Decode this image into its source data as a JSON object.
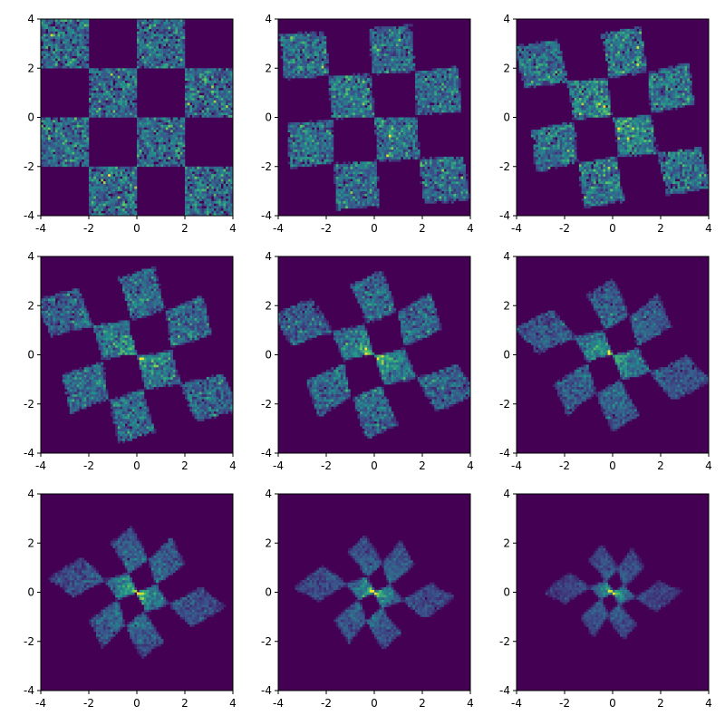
{
  "figure": {
    "background": "#ffffff",
    "colormap": "viridis",
    "colormap_stops": [
      "#440154",
      "#3b528b",
      "#21918c",
      "#5ec962",
      "#fde725"
    ]
  },
  "chart_data": [
    {
      "type": "heatmap",
      "panel": 1,
      "transform": {
        "rotation_deg": 0,
        "contraction": 0.0,
        "radial_gap": 0.0,
        "concentration": 0.0
      },
      "xlim": [
        -4,
        4
      ],
      "ylim": [
        -4,
        4
      ],
      "xticks": [
        "-4",
        "-2",
        "0",
        "2",
        "4"
      ],
      "yticks": [
        "-4",
        "-2",
        "0",
        "2",
        "4"
      ],
      "grid": false,
      "legend": "none",
      "distribution": "checkerboard of uniform squares, cell size 2, range [-4,4]"
    },
    {
      "type": "heatmap",
      "panel": 2,
      "transform": {
        "rotation_deg": 4,
        "contraction": 0.1,
        "radial_gap": 0.1,
        "concentration": 0.1
      },
      "xlim": [
        -4,
        4
      ],
      "ylim": [
        -4,
        4
      ],
      "xticks": [
        "-4",
        "-2",
        "0",
        "2",
        "4"
      ],
      "yticks": [
        "-4",
        "-2",
        "0",
        "2",
        "4"
      ],
      "grid": false,
      "legend": "none",
      "distribution": "squares shrink and separate"
    },
    {
      "type": "heatmap",
      "panel": 3,
      "transform": {
        "rotation_deg": 9,
        "contraction": 0.14,
        "radial_gap": 0.16,
        "concentration": 0.2
      },
      "xlim": [
        -4,
        4
      ],
      "ylim": [
        -4,
        4
      ],
      "xticks": [
        "-4",
        "-2",
        "0",
        "2",
        "4"
      ],
      "yticks": [
        "-4",
        "-2",
        "0",
        "2",
        "4"
      ],
      "grid": false,
      "legend": "none",
      "distribution": "squares rotate toward center"
    },
    {
      "type": "heatmap",
      "panel": 4,
      "transform": {
        "rotation_deg": 16,
        "contraction": 0.18,
        "radial_gap": 0.2,
        "concentration": 0.32
      },
      "xlim": [
        -4,
        4
      ],
      "ylim": [
        -4,
        4
      ],
      "xticks": [
        "-4",
        "-2",
        "0",
        "2",
        "4"
      ],
      "yticks": [
        "-4",
        "-2",
        "0",
        "2",
        "4"
      ],
      "grid": false,
      "legend": "none",
      "distribution": "pinwheel forming"
    },
    {
      "type": "heatmap",
      "panel": 5,
      "transform": {
        "rotation_deg": 23,
        "contraction": 0.22,
        "radial_gap": 0.22,
        "concentration": 0.42
      },
      "xlim": [
        -4,
        4
      ],
      "ylim": [
        -4,
        4
      ],
      "xticks": [
        "-4",
        "-2",
        "0",
        "2",
        "4"
      ],
      "yticks": [
        "-4",
        "-2",
        "0",
        "2",
        "4"
      ],
      "grid": false,
      "legend": "none",
      "distribution": "pinwheel"
    },
    {
      "type": "heatmap",
      "panel": 6,
      "transform": {
        "rotation_deg": 30,
        "contraction": 0.28,
        "radial_gap": 0.2,
        "concentration": 0.55
      },
      "xlim": [
        -4,
        4
      ],
      "ylim": [
        -4,
        4
      ],
      "xticks": [
        "-4",
        "-2",
        "0",
        "2",
        "4"
      ],
      "yticks": [
        "-4",
        "-2",
        "0",
        "2",
        "4"
      ],
      "grid": false,
      "legend": "none",
      "distribution": "pinwheel, denser center"
    },
    {
      "type": "heatmap",
      "panel": 7,
      "transform": {
        "rotation_deg": 38,
        "contraction": 0.36,
        "radial_gap": 0.14,
        "concentration": 0.7
      },
      "xlim": [
        -4,
        4
      ],
      "ylim": [
        -4,
        4
      ],
      "xticks": [
        "-4",
        "-2",
        "0",
        "2",
        "4"
      ],
      "yticks": [
        "-4",
        "-2",
        "0",
        "2",
        "4"
      ],
      "grid": false,
      "legend": "none",
      "distribution": "compact swirl"
    },
    {
      "type": "heatmap",
      "panel": 8,
      "transform": {
        "rotation_deg": 46,
        "contraction": 0.42,
        "radial_gap": 0.1,
        "concentration": 0.82
      },
      "xlim": [
        -4,
        4
      ],
      "ylim": [
        -4,
        4
      ],
      "xticks": [
        "-4",
        "-2",
        "0",
        "2",
        "4"
      ],
      "yticks": [
        "-4",
        "-2",
        "0",
        "2",
        "4"
      ],
      "grid": false,
      "legend": "none",
      "distribution": "compact swirl"
    },
    {
      "type": "heatmap",
      "panel": 9,
      "transform": {
        "rotation_deg": 54,
        "contraction": 0.5,
        "radial_gap": 0.06,
        "concentration": 0.95
      },
      "xlim": [
        -4,
        4
      ],
      "ylim": [
        -4,
        4
      ],
      "xticks": [
        "-4",
        "-2",
        "0",
        "2",
        "4"
      ],
      "yticks": [
        "-4",
        "-2",
        "0",
        "2",
        "4"
      ],
      "grid": false,
      "legend": "none",
      "distribution": "concentrated near origin"
    }
  ]
}
